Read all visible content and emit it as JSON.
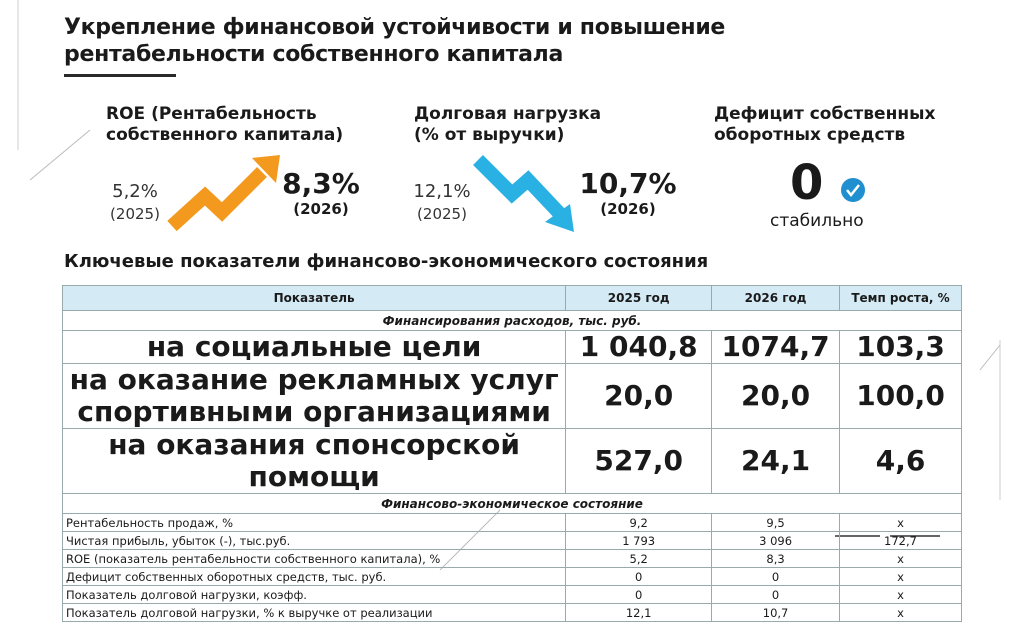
{
  "header": {
    "title_lines": [
      "Укрепление финансовой устойчивости и повышение",
      "рентабельности собственного капитала"
    ]
  },
  "kpis": [
    {
      "label_lines": [
        "ROE (Рентабельность",
        "собственного капитала)"
      ],
      "from": "5,2%",
      "from_year": "(2025)",
      "to": "8,3%",
      "to_year": "(2026)"
    },
    {
      "label_lines": [
        "Долговая нагрузка",
        "(% от выручки)"
      ],
      "from": "12,1%",
      "from_year": "(2025)",
      "to": "10,7%",
      "to_year": "(2026)"
    },
    {
      "label_lines": [
        "Дефицит собственных",
        "оборотных средств"
      ],
      "value": "0",
      "note": "стабильно"
    }
  ],
  "table": {
    "title": "Ключевые показатели финансово-экономического состояния",
    "columns": [
      "Показатель",
      "2025 год",
      "2026 год",
      "Темп роста, %"
    ],
    "sections": [
      {
        "title": "Финансирования расходов, тыс. руб.",
        "rows": [
          [
            "на социальные цели",
            "1 040,8",
            "1074,7",
            "103,3"
          ],
          [
            "на оказание рекламных услуг спортивными организациями",
            "20,0",
            "20,0",
            "100,0"
          ],
          [
            "на оказания спонсорской помощи",
            "527,0",
            "24,1",
            "4,6"
          ]
        ]
      },
      {
        "title": "Финансово-экономическое состояние",
        "rows": [
          [
            "Рентабельность продаж, %",
            "9,2",
            "9,5",
            "х"
          ],
          [
            "Чистая прибыль, убыток (-), тыс.руб.",
            "1 793",
            "3 096",
            "172,7"
          ],
          [
            "ROE (показатель рентабельности собственного капитала), %",
            "5,2",
            "8,3",
            "х"
          ],
          [
            "Дефицит собственных оборотных средств, тыс. руб.",
            "0",
            "0",
            "х"
          ],
          [
            "Показатель долговой нагрузки, коэфф.",
            "0",
            "0",
            "х"
          ],
          [
            "Показатель долговой нагрузки, % к выручке от реализации",
            "12,1",
            "10,7",
            "х"
          ]
        ]
      }
    ]
  }
}
